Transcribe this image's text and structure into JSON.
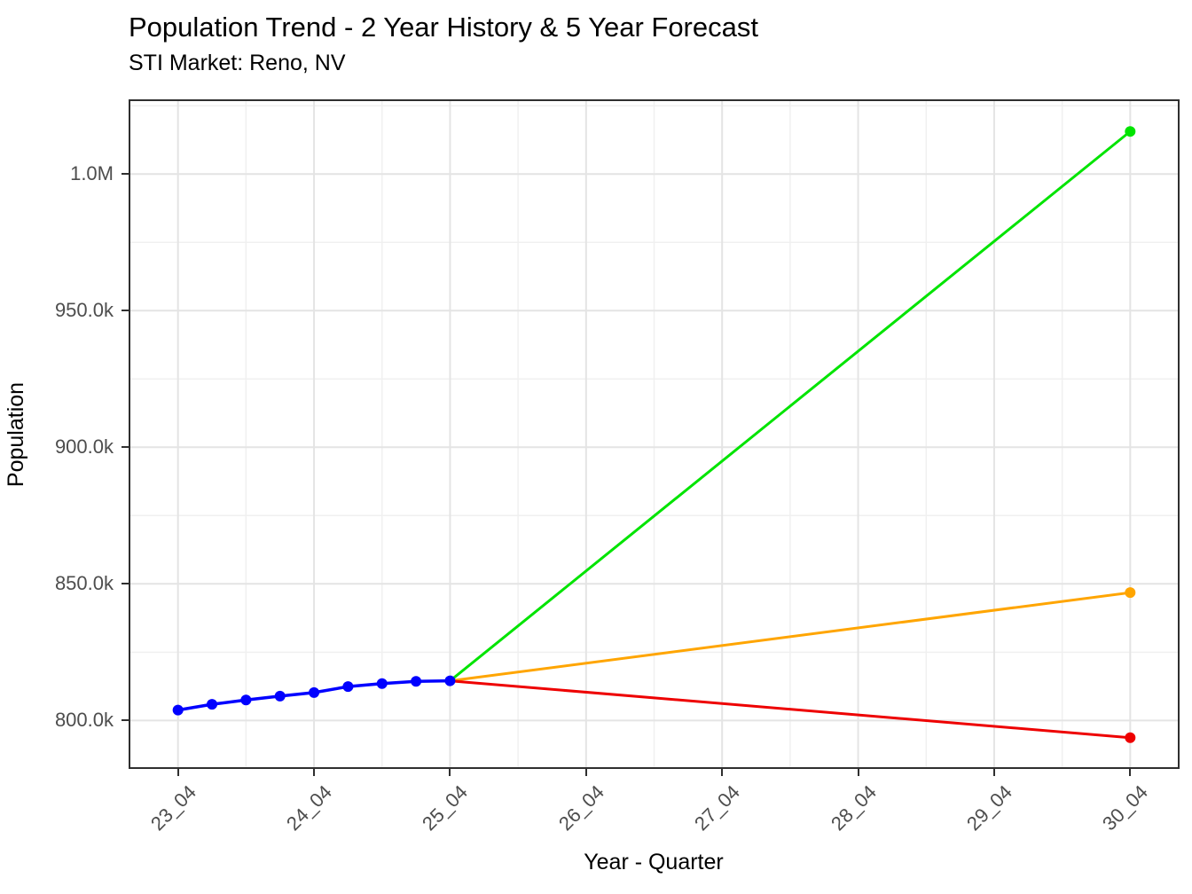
{
  "chart_data": {
    "type": "line",
    "title": "Population Trend - 2 Year History & 5 Year Forecast",
    "subtitle": "STI Market: Reno, NV",
    "xlabel": "Year - Quarter",
    "ylabel": "Population",
    "x_unit": "quarters since 23_04",
    "xlim": [
      -1.4,
      29.4
    ],
    "ylim": [
      782900,
      1026700
    ],
    "grid": {
      "major": true,
      "minor": true
    },
    "x_ticks": [
      {
        "pos": 0,
        "label": "23_04"
      },
      {
        "pos": 4,
        "label": "24_04"
      },
      {
        "pos": 8,
        "label": "25_04"
      },
      {
        "pos": 12,
        "label": "26_04"
      },
      {
        "pos": 16,
        "label": "27_04"
      },
      {
        "pos": 20,
        "label": "28_04"
      },
      {
        "pos": 24,
        "label": "29_04"
      },
      {
        "pos": 28,
        "label": "30_04"
      }
    ],
    "x_minor": [
      2,
      6,
      10,
      14,
      18,
      22,
      26
    ],
    "y_ticks": [
      {
        "pos": 800000,
        "label": "800.0k"
      },
      {
        "pos": 850000,
        "label": "850.0k"
      },
      {
        "pos": 900000,
        "label": "900.0k"
      },
      {
        "pos": 950000,
        "label": "950.0k"
      },
      {
        "pos": 1000000,
        "label": "1.0M"
      }
    ],
    "y_minor": [
      825000,
      875000,
      925000,
      975000,
      1025000
    ],
    "series": [
      {
        "name": "history",
        "color": "#0000ff",
        "markers": "all",
        "line_width": 3.5,
        "quarters": [
          "23_04",
          "24_01",
          "24_02",
          "24_03",
          "24_04",
          "25_01",
          "25_02",
          "25_03",
          "25_04"
        ],
        "x": [
          0,
          1,
          2,
          3,
          4,
          5,
          6,
          7,
          8
        ],
        "values": [
          803800,
          805900,
          807500,
          808900,
          810200,
          812400,
          813500,
          814300,
          814500
        ]
      },
      {
        "name": "forecast-high",
        "color": "#00e400",
        "markers": "end",
        "line_width": 3,
        "quarters": [
          "25_04",
          "30_04"
        ],
        "x": [
          8,
          28
        ],
        "values": [
          814500,
          1015600
        ]
      },
      {
        "name": "forecast-base",
        "color": "#ffa500",
        "markers": "end",
        "line_width": 3,
        "quarters": [
          "25_04",
          "30_04"
        ],
        "x": [
          8,
          28
        ],
        "values": [
          814500,
          846800
        ]
      },
      {
        "name": "forecast-low",
        "color": "#ee0000",
        "markers": "end",
        "line_width": 3,
        "quarters": [
          "25_04",
          "30_04"
        ],
        "x": [
          8,
          28
        ],
        "values": [
          814500,
          793700
        ]
      }
    ],
    "style": {
      "major_grid_color": "#e4e4e4",
      "minor_grid_color": "#f0f0f0",
      "border_color": "#2f2f2f",
      "tick_color": "#2f2f2f",
      "tick_text_color": "#4d4d4d",
      "marker_radius": 6
    }
  }
}
